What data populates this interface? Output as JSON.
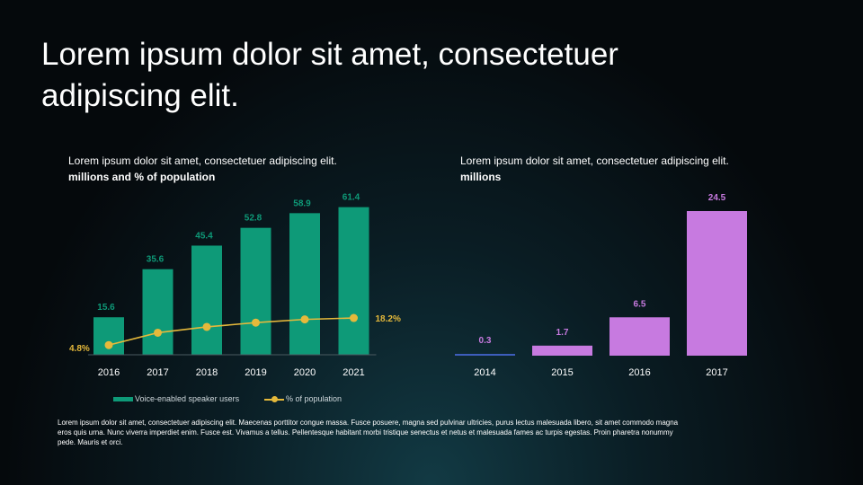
{
  "title": "Lorem ipsum dolor sit amet, consectetuer adipiscing elit.",
  "colors": {
    "teal": "#0e9a78",
    "gold": "#e5b93b",
    "purple": "#c77ae0",
    "blue": "#3f5fbf",
    "text": "#ffffff"
  },
  "footnote": "Lorem ipsum dolor sit amet, consectetuer adipiscing elit. Maecenas porttitor congue massa. Fusce posuere, magna sed pulvinar ultricies, purus lectus malesuada libero, sit amet commodo magna eros quis urna. Nunc viverra imperdiet enim. Fusce est. Vivamus a tellus. Pellentesque habitant morbi tristique senectus et netus et malesuada fames ac turpis egestas. Proin pharetra nonummy pede. Mauris et orci.",
  "chart_data": [
    {
      "type": "bar",
      "title": "Lorem ipsum dolor sit amet, consectetuer adipiscing elit.",
      "subtitle": "millions and % of population",
      "categories": [
        "2016",
        "2017",
        "2018",
        "2019",
        "2020",
        "2021"
      ],
      "series": [
        {
          "name": "Voice-enabled speaker users",
          "type": "bar",
          "values": [
            15.6,
            35.6,
            45.4,
            52.8,
            58.9,
            61.4
          ],
          "labels": [
            "15.6",
            "35.6",
            "45.4",
            "52.8",
            "58.9",
            "61.4"
          ]
        },
        {
          "name": "% of population",
          "type": "line",
          "values": [
            4.8,
            10.9,
            13.8,
            15.9,
            17.5,
            18.2
          ],
          "labels": [
            "4.8%",
            "",
            "",
            "",
            "",
            "18.2%"
          ]
        }
      ],
      "ylim": [
        0,
        65
      ],
      "legend": "bottom"
    },
    {
      "type": "bar",
      "title": "Lorem ipsum dolor sit amet, consectetuer adipiscing elit.",
      "subtitle": "millions",
      "categories": [
        "2014",
        "2015",
        "2016",
        "2017"
      ],
      "series": [
        {
          "name": "millions",
          "values": [
            0.3,
            1.7,
            6.5,
            24.5
          ],
          "labels": [
            "0.3",
            "1.7",
            "6.5",
            "24.5"
          ]
        }
      ],
      "ylim": [
        0,
        25
      ]
    }
  ]
}
